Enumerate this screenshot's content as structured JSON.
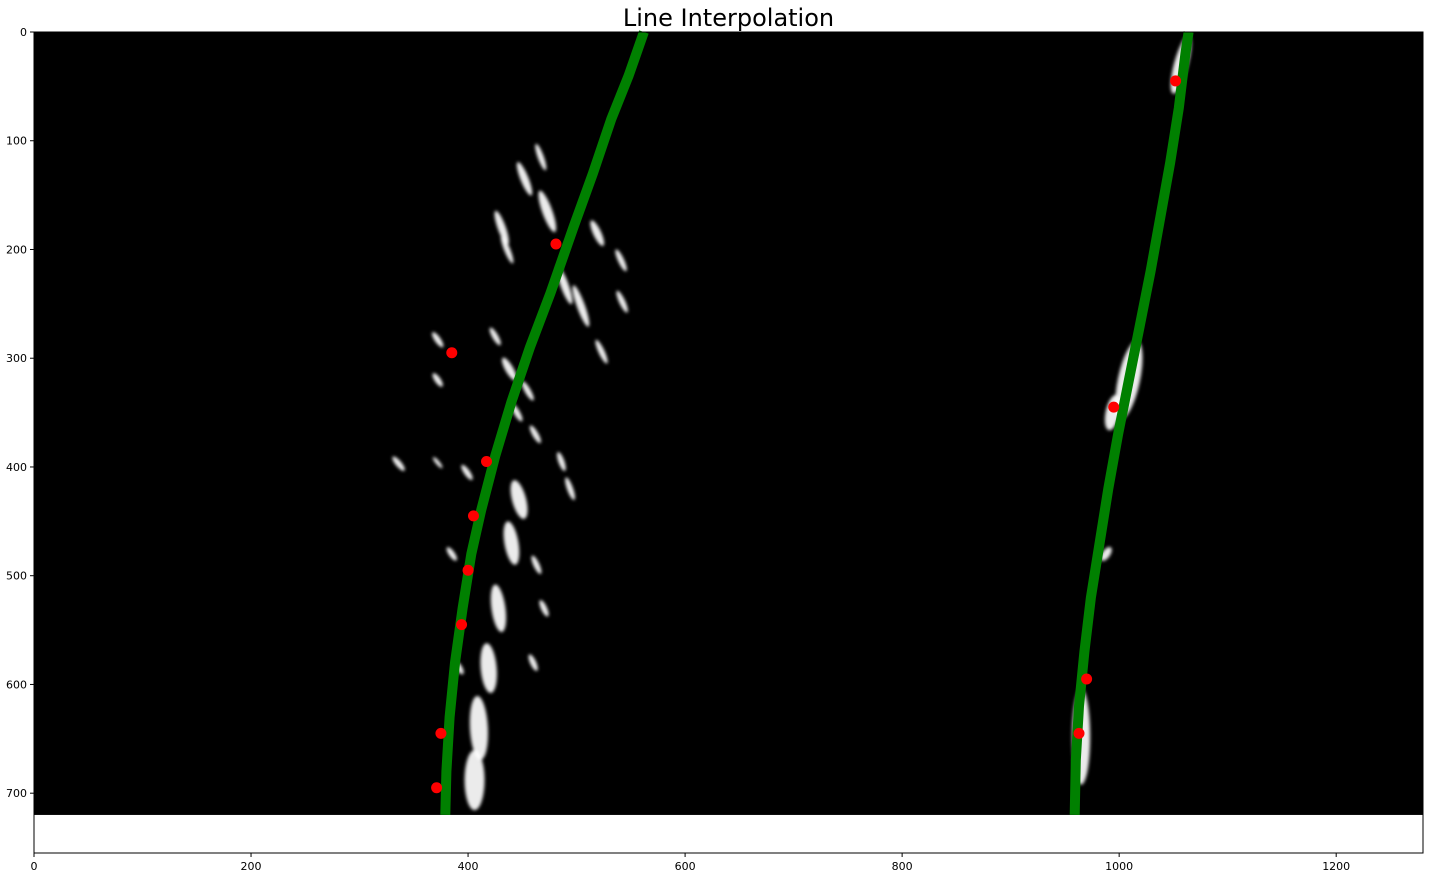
{
  "chart_data": {
    "type": "scatter",
    "title": "Line Interpolation",
    "xlabel": "",
    "ylabel": "",
    "xlim": [
      0,
      1280
    ],
    "ylim": [
      755,
      0
    ],
    "y_axis_inverted": true,
    "grid": false,
    "image_background": "black",
    "image_extent": [
      0,
      1280,
      720,
      0
    ],
    "x_ticks": [
      0,
      200,
      400,
      600,
      800,
      1000,
      1200
    ],
    "y_ticks": [
      0,
      100,
      200,
      300,
      400,
      500,
      600,
      700
    ],
    "x_tick_labels": [
      "0",
      "200",
      "400",
      "600",
      "800",
      "1000",
      "1200"
    ],
    "y_tick_labels": [
      "0",
      "100",
      "200",
      "300",
      "400",
      "500",
      "600",
      "700"
    ],
    "series": [
      {
        "kind": "points",
        "color": "#ff0000",
        "points": [
          {
            "x": 481,
            "y": 195
          },
          {
            "x": 385,
            "y": 295
          },
          {
            "x": 417,
            "y": 395
          },
          {
            "x": 405,
            "y": 445
          },
          {
            "x": 400,
            "y": 495
          },
          {
            "x": 394,
            "y": 545
          },
          {
            "x": 375,
            "y": 645
          },
          {
            "x": 371,
            "y": 695
          }
        ]
      },
      {
        "kind": "points",
        "color": "#ff0000",
        "points": [
          {
            "x": 1052,
            "y": 45
          },
          {
            "x": 995,
            "y": 345
          },
          {
            "x": 970,
            "y": 595
          },
          {
            "x": 963,
            "y": 645
          }
        ]
      },
      {
        "kind": "line",
        "color": "#008000",
        "points": [
          {
            "x": 379,
            "y": 720
          },
          {
            "x": 380,
            "y": 680
          },
          {
            "x": 383,
            "y": 630
          },
          {
            "x": 388,
            "y": 580
          },
          {
            "x": 395,
            "y": 530
          },
          {
            "x": 403,
            "y": 480
          },
          {
            "x": 412,
            "y": 440
          },
          {
            "x": 425,
            "y": 390
          },
          {
            "x": 440,
            "y": 340
          },
          {
            "x": 457,
            "y": 290
          },
          {
            "x": 476,
            "y": 240
          },
          {
            "x": 497,
            "y": 180
          },
          {
            "x": 515,
            "y": 130
          },
          {
            "x": 532,
            "y": 80
          },
          {
            "x": 548,
            "y": 40
          },
          {
            "x": 562,
            "y": 0
          }
        ]
      },
      {
        "kind": "line",
        "color": "#008000",
        "points": [
          {
            "x": 959,
            "y": 720
          },
          {
            "x": 960,
            "y": 670
          },
          {
            "x": 963,
            "y": 620
          },
          {
            "x": 968,
            "y": 570
          },
          {
            "x": 974,
            "y": 520
          },
          {
            "x": 982,
            "y": 470
          },
          {
            "x": 990,
            "y": 420
          },
          {
            "x": 999,
            "y": 370
          },
          {
            "x": 1009,
            "y": 320
          },
          {
            "x": 1019,
            "y": 270
          },
          {
            "x": 1029,
            "y": 220
          },
          {
            "x": 1038,
            "y": 170
          },
          {
            "x": 1047,
            "y": 120
          },
          {
            "x": 1055,
            "y": 70
          },
          {
            "x": 1061,
            "y": 20
          },
          {
            "x": 1064,
            "y": 0
          }
        ]
      }
    ],
    "marks": [
      {
        "x": 431,
        "y": 180,
        "rx": 4,
        "ry": 18,
        "rot": -20
      },
      {
        "x": 436,
        "y": 200,
        "rx": 3,
        "ry": 15,
        "rot": -22
      },
      {
        "x": 452,
        "y": 135,
        "rx": 4,
        "ry": 18,
        "rot": -22
      },
      {
        "x": 467,
        "y": 115,
        "rx": 3,
        "ry": 14,
        "rot": -20
      },
      {
        "x": 473,
        "y": 165,
        "rx": 5,
        "ry": 22,
        "rot": -20
      },
      {
        "x": 489,
        "y": 233,
        "rx": 4,
        "ry": 20,
        "rot": -20
      },
      {
        "x": 504,
        "y": 252,
        "rx": 4,
        "ry": 22,
        "rot": -20
      },
      {
        "x": 523,
        "y": 294,
        "rx": 3,
        "ry": 13,
        "rot": -25
      },
      {
        "x": 541,
        "y": 210,
        "rx": 3,
        "ry": 12,
        "rot": -25
      },
      {
        "x": 519,
        "y": 185,
        "rx": 4,
        "ry": 14,
        "rot": -25
      },
      {
        "x": 542,
        "y": 248,
        "rx": 3,
        "ry": 12,
        "rot": -25
      },
      {
        "x": 425,
        "y": 280,
        "rx": 3,
        "ry": 10,
        "rot": -30
      },
      {
        "x": 438,
        "y": 310,
        "rx": 4,
        "ry": 13,
        "rot": -30
      },
      {
        "x": 445,
        "y": 350,
        "rx": 3,
        "ry": 10,
        "rot": -30
      },
      {
        "x": 455,
        "y": 330,
        "rx": 3,
        "ry": 11,
        "rot": -30
      },
      {
        "x": 462,
        "y": 370,
        "rx": 3,
        "ry": 10,
        "rot": -30
      },
      {
        "x": 494,
        "y": 420,
        "rx": 3,
        "ry": 12,
        "rot": -20
      },
      {
        "x": 486,
        "y": 395,
        "rx": 3,
        "ry": 10,
        "rot": -20
      },
      {
        "x": 372,
        "y": 283,
        "rx": 3,
        "ry": 9,
        "rot": -35
      },
      {
        "x": 372,
        "y": 320,
        "rx": 3,
        "ry": 8,
        "rot": -35
      },
      {
        "x": 336,
        "y": 397,
        "rx": 3,
        "ry": 9,
        "rot": -40
      },
      {
        "x": 372,
        "y": 396,
        "rx": 2,
        "ry": 7,
        "rot": -40
      },
      {
        "x": 399,
        "y": 405,
        "rx": 3,
        "ry": 9,
        "rot": -35
      },
      {
        "x": 447,
        "y": 430,
        "rx": 7,
        "ry": 20,
        "rot": -15
      },
      {
        "x": 440,
        "y": 470,
        "rx": 7,
        "ry": 22,
        "rot": -10
      },
      {
        "x": 428,
        "y": 530,
        "rx": 7,
        "ry": 24,
        "rot": -8
      },
      {
        "x": 419,
        "y": 585,
        "rx": 8,
        "ry": 25,
        "rot": -5
      },
      {
        "x": 410,
        "y": 640,
        "rx": 9,
        "ry": 32,
        "rot": -3
      },
      {
        "x": 406,
        "y": 688,
        "rx": 10,
        "ry": 30,
        "rot": 0
      },
      {
        "x": 463,
        "y": 490,
        "rx": 3,
        "ry": 10,
        "rot": -25
      },
      {
        "x": 470,
        "y": 530,
        "rx": 3,
        "ry": 9,
        "rot": -25
      },
      {
        "x": 460,
        "y": 580,
        "rx": 3,
        "ry": 9,
        "rot": -25
      },
      {
        "x": 392,
        "y": 585,
        "rx": 3,
        "ry": 7,
        "rot": -30
      },
      {
        "x": 385,
        "y": 480,
        "rx": 3,
        "ry": 8,
        "rot": -35
      },
      {
        "x": 1057,
        "y": 30,
        "rx": 7,
        "ry": 30,
        "rot": 15
      },
      {
        "x": 1009,
        "y": 320,
        "rx": 11,
        "ry": 40,
        "rot": 12
      },
      {
        "x": 994,
        "y": 350,
        "rx": 7,
        "ry": 18,
        "rot": 12
      },
      {
        "x": 988,
        "y": 480,
        "rx": 4,
        "ry": 8,
        "rot": 35
      },
      {
        "x": 965,
        "y": 648,
        "rx": 9,
        "ry": 48,
        "rot": 0
      }
    ]
  }
}
